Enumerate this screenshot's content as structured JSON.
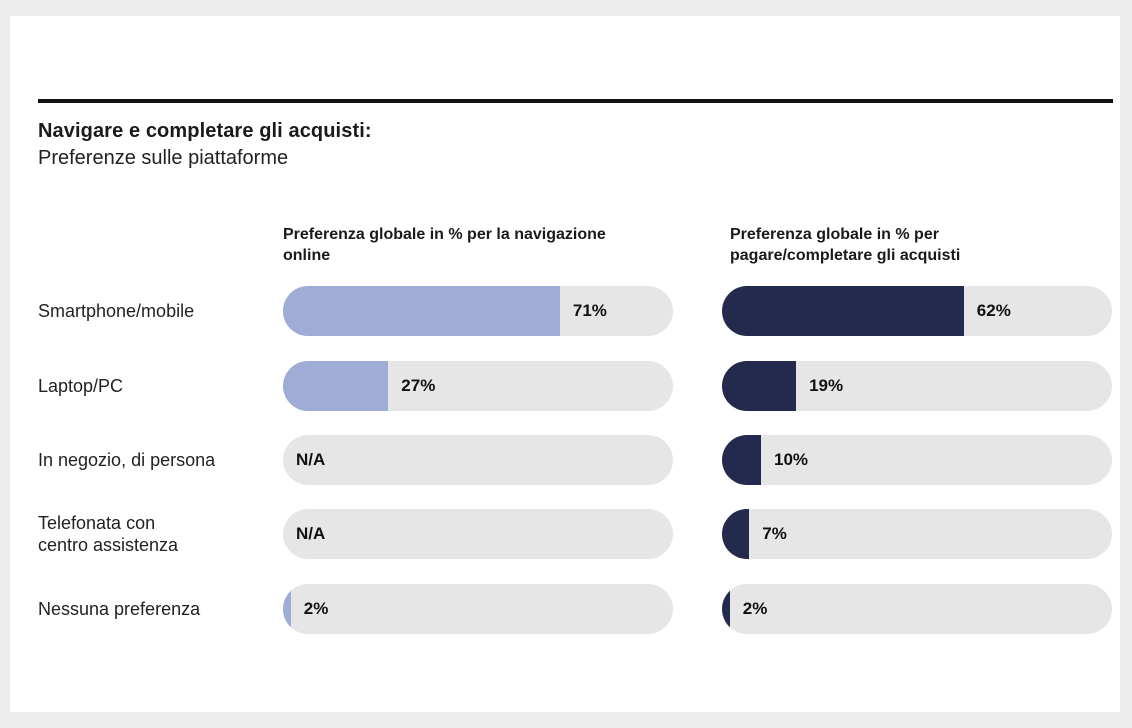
{
  "header": {
    "title": "Navigare e completare gli acquisti:",
    "subtitle": "Preferenze sulle piattaforme"
  },
  "chart_data": {
    "type": "bar",
    "orientation": "horizontal",
    "categories": [
      "Smartphone/mobile",
      "Laptop/PC",
      "In negozio, di persona",
      "Telefonata con centro assistenza",
      "Nessuna preferenza"
    ],
    "category_lines": [
      [
        "Smartphone/mobile"
      ],
      [
        "Laptop/PC"
      ],
      [
        "In negozio, di persona"
      ],
      [
        "Telefonata con",
        "centro assistenza"
      ],
      [
        "Nessuna preferenza"
      ]
    ],
    "series": [
      {
        "name": "Preferenza globale in % per la navigazione online",
        "values": [
          71,
          27,
          null,
          null,
          2
        ],
        "labels": [
          "71%",
          "27%",
          "N/A",
          "N/A",
          "2%"
        ],
        "color": "#9eacd6"
      },
      {
        "name": "Preferenza globale in % per pagare/completare gli acquisti",
        "values": [
          62,
          19,
          10,
          7,
          2
        ],
        "labels": [
          "62%",
          "19%",
          "10%",
          "7%",
          "2%"
        ],
        "color": "#232a4d"
      }
    ],
    "xlim": [
      0,
      100
    ],
    "track_color": "#e6e6e6"
  }
}
